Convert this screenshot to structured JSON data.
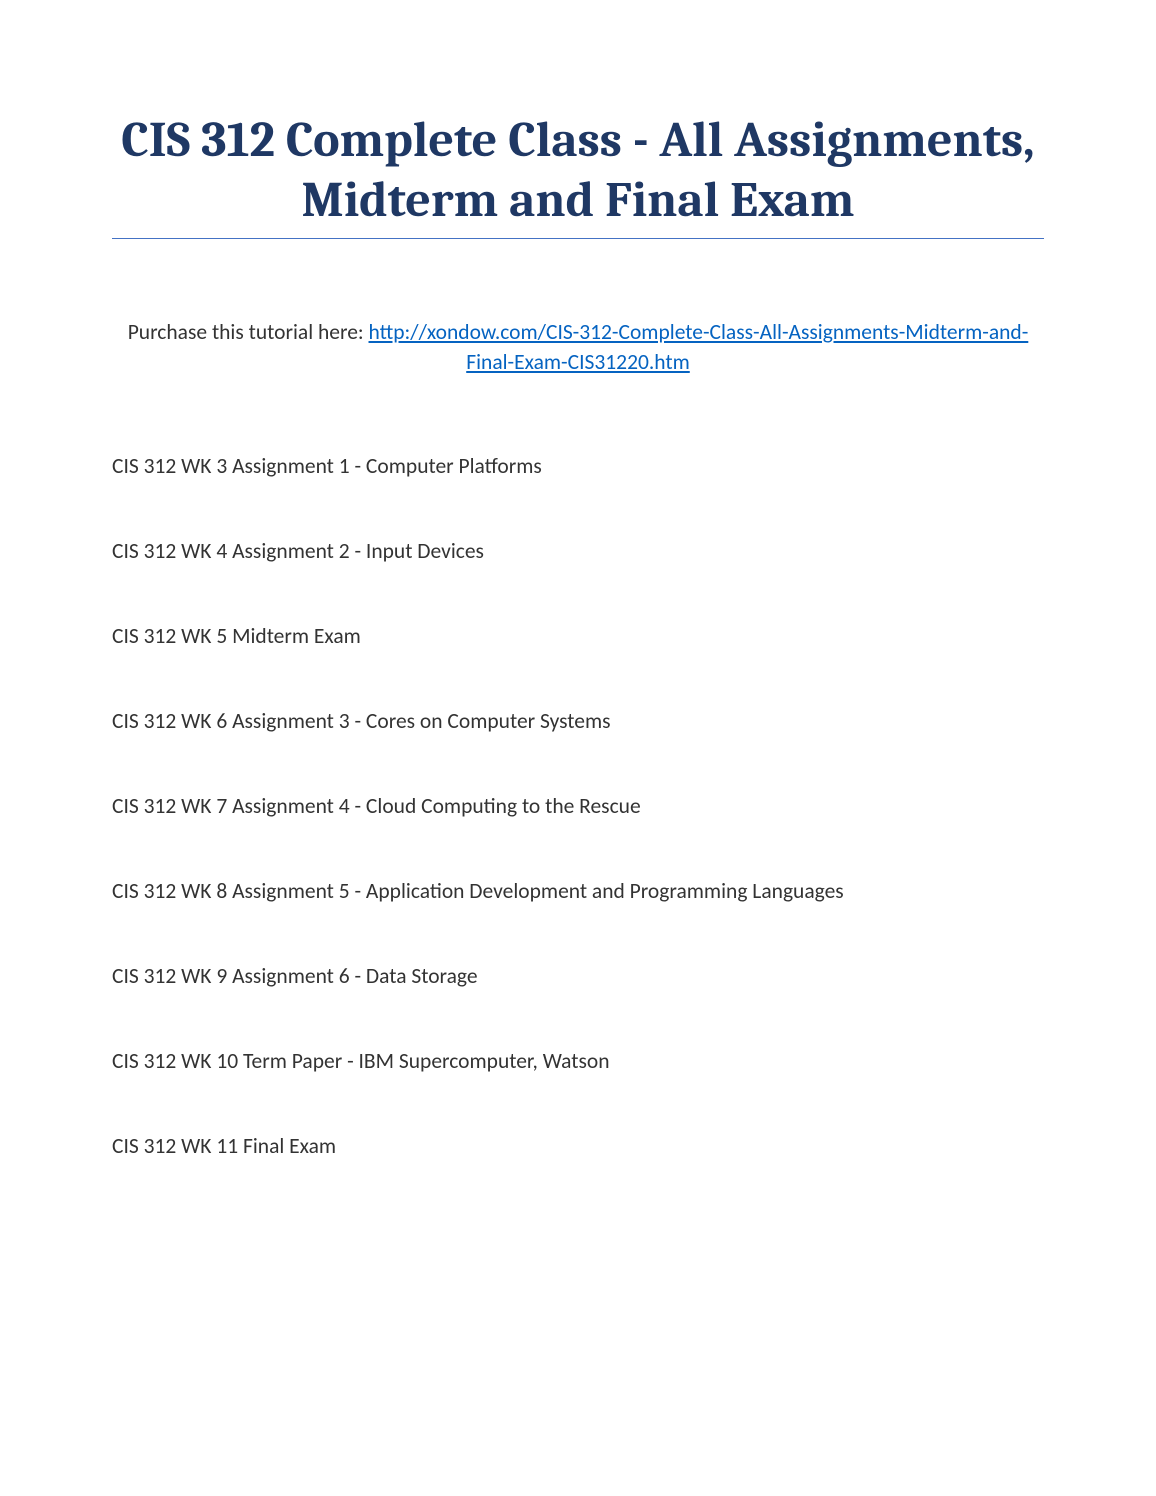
{
  "title": "CIS 312 Complete Class - All Assignments, Midterm and Final Exam",
  "purchase": {
    "prefix": "Purchase this tutorial here: ",
    "link_text": "http://xondow.com/CIS-312-Complete-Class-All-Assignments-Midterm-and-Final-Exam-CIS31220.htm"
  },
  "items": [
    "CIS 312 WK 3 Assignment 1 - Computer Platforms",
    "CIS 312 WK 4 Assignment 2 - Input Devices",
    "CIS 312 WK 5 Midterm Exam",
    "CIS 312 WK 6 Assignment 3 - Cores on Computer Systems",
    "CIS 312 WK 7 Assignment 4 - Cloud Computing to the Rescue",
    "CIS 312 WK 8 Assignment 5 - Application Development and Programming Languages",
    "CIS 312 WK 9 Assignment 6 - Data Storage",
    "CIS 312 WK 10 Term Paper - IBM Supercomputer, Watson",
    "CIS 312 WK 11 Final Exam"
  ],
  "colors": {
    "title_color": "#1f3864",
    "underline_color": "#4472c4",
    "link_color": "#0563c1",
    "text_color": "#333333",
    "background": "#ffffff"
  },
  "typography": {
    "title_font": "Cambria",
    "title_size": 50,
    "body_font": "Calibri",
    "body_size": 21.5
  }
}
